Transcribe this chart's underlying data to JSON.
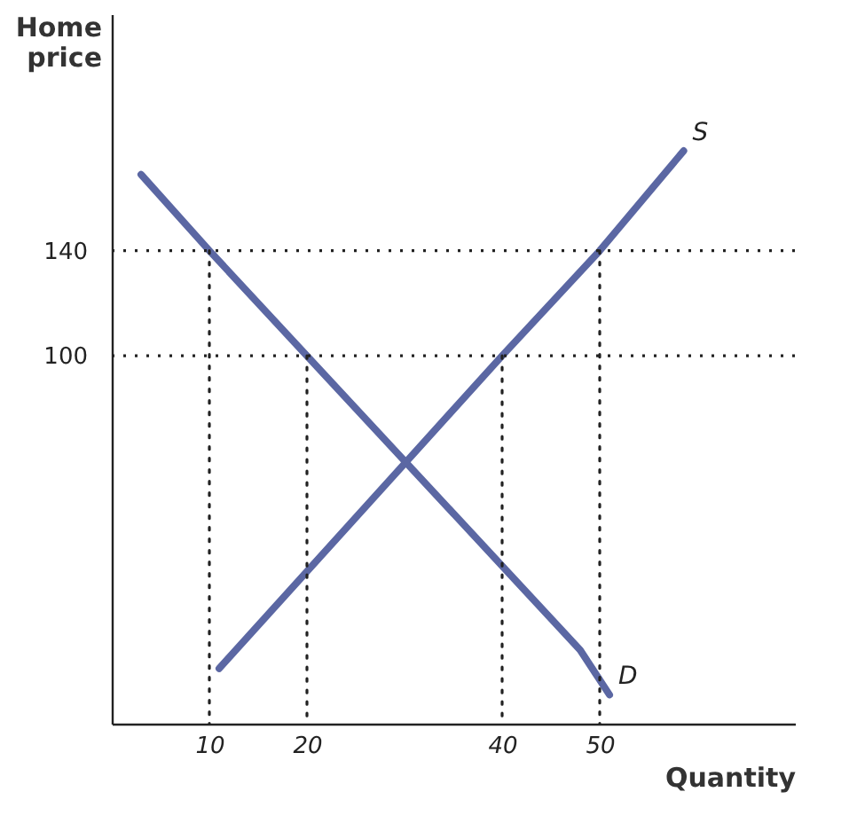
{
  "chart_data": {
    "type": "line",
    "xlabel": "Quantity",
    "ylabel": "Home price",
    "xlim": [
      0,
      70
    ],
    "ylim": [
      -40,
      230
    ],
    "xticks": [
      10,
      20,
      40,
      50
    ],
    "yticks": [
      100,
      140
    ],
    "marker": "none",
    "series": [
      {
        "name": "D",
        "color": "#5b67a3",
        "line_style": "solid",
        "x": [
          3,
          10,
          20,
          46,
          48,
          51
        ],
        "values": [
          169,
          140,
          100,
          -4,
          -12,
          -29
        ]
      },
      {
        "name": "S",
        "color": "#5b67a3",
        "line_style": "solid",
        "x": [
          11,
          40,
          50,
          58.6
        ],
        "values": [
          -19,
          100,
          140,
          178
        ]
      },
      {
        "color": "#222222",
        "line_style": "dotted",
        "x": [
          10,
          10
        ],
        "values": [
          140,
          -40
        ]
      },
      {
        "color": "#222222",
        "line_style": "dotted",
        "x": [
          20,
          20
        ],
        "values": [
          100,
          -40
        ]
      },
      {
        "color": "#222222",
        "line_style": "dotted",
        "x": [
          40,
          40
        ],
        "values": [
          100,
          -40
        ]
      },
      {
        "color": "#222222",
        "line_style": "dotted",
        "x": [
          50,
          50
        ],
        "values": [
          140,
          -40
        ]
      }
    ],
    "ref_lines": [
      {
        "axis": "y",
        "value": 140,
        "color": "#222222",
        "line_style": "dotted"
      },
      {
        "axis": "y",
        "value": 100,
        "color": "#222222",
        "line_style": "dotted"
      }
    ]
  }
}
